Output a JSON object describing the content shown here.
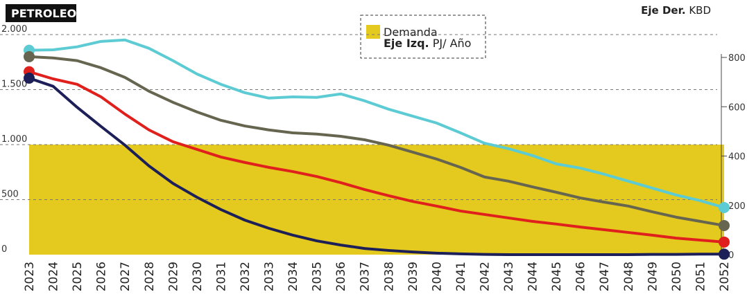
{
  "chart_data": {
    "type": "line",
    "title": "PETROLEO",
    "y_label_bold": "Eje Izq.",
    "y_label": "PJ/ Año",
    "y2_label_bold": "Eje Der.",
    "y2_label": "KBD",
    "categories": [
      "2023",
      "2024",
      "2025",
      "2026",
      "2027",
      "2028",
      "2029",
      "2030",
      "2031",
      "2032",
      "2033",
      "2034",
      "2035",
      "2036",
      "2037",
      "2038",
      "2039",
      "2040",
      "2041",
      "2042",
      "2043",
      "2044",
      "2045",
      "2046",
      "2047",
      "2048",
      "2049",
      "2050",
      "2051",
      "2052"
    ],
    "ylim": [
      0,
      2000
    ],
    "yticks": [
      0,
      500,
      {
        "value": 1000,
        "label": "1.000"
      },
      {
        "value": 1500,
        "label": "1.500"
      },
      {
        "value": 2000,
        "label": "2.000"
      }
    ],
    "y2lim": [
      0,
      800
    ],
    "y2ticks": [
      0,
      200,
      400,
      600,
      800
    ],
    "grid": true,
    "series": [
      {
        "name": "Demanda",
        "type": "area",
        "axis": "y",
        "color": "#e4c91f",
        "values": [
          1000,
          1000,
          1000,
          1000,
          1000,
          1000,
          1000,
          1000,
          1000,
          1000,
          1000,
          1000,
          1000,
          1000,
          1000,
          1000,
          1000,
          1000,
          1000,
          1000,
          1000,
          1000,
          1000,
          1000,
          1000,
          1000,
          1000,
          1000,
          1000,
          1000
        ]
      },
      {
        "axis": "y2",
        "color": "#5ccbd3",
        "values": [
          829,
          831,
          843,
          865,
          871,
          837,
          787,
          733,
          691,
          657,
          635,
          640,
          638,
          652,
          624,
          590,
          562,
          534,
          494,
          452,
          430,
          402,
          368,
          351,
          326,
          298,
          270,
          242,
          219,
          191
        ]
      },
      {
        "axis": "y2",
        "color": "#66654f",
        "values": [
          803,
          798,
          787,
          758,
          719,
          663,
          618,
          579,
          545,
          522,
          506,
          494,
          489,
          480,
          466,
          444,
          416,
          388,
          354,
          315,
          298,
          275,
          253,
          230,
          213,
          197,
          174,
          152,
          135,
          118
        ]
      },
      {
        "axis": "y2",
        "color": "#e0201c",
        "values": [
          742,
          713,
          691,
          640,
          570,
          506,
          458,
          427,
          396,
          374,
          354,
          337,
          317,
          292,
          264,
          239,
          216,
          197,
          177,
          163,
          149,
          135,
          124,
          112,
          101,
          90,
          79,
          67,
          59,
          51
        ]
      },
      {
        "axis": "y2",
        "color": "#1d2058",
        "values": [
          716,
          683,
          598,
          520,
          444,
          360,
          289,
          233,
          183,
          140,
          107,
          79,
          56,
          39,
          25,
          17,
          11,
          6,
          3,
          1,
          0,
          0,
          0,
          0,
          0,
          0,
          1,
          1,
          2,
          2
        ]
      }
    ]
  }
}
